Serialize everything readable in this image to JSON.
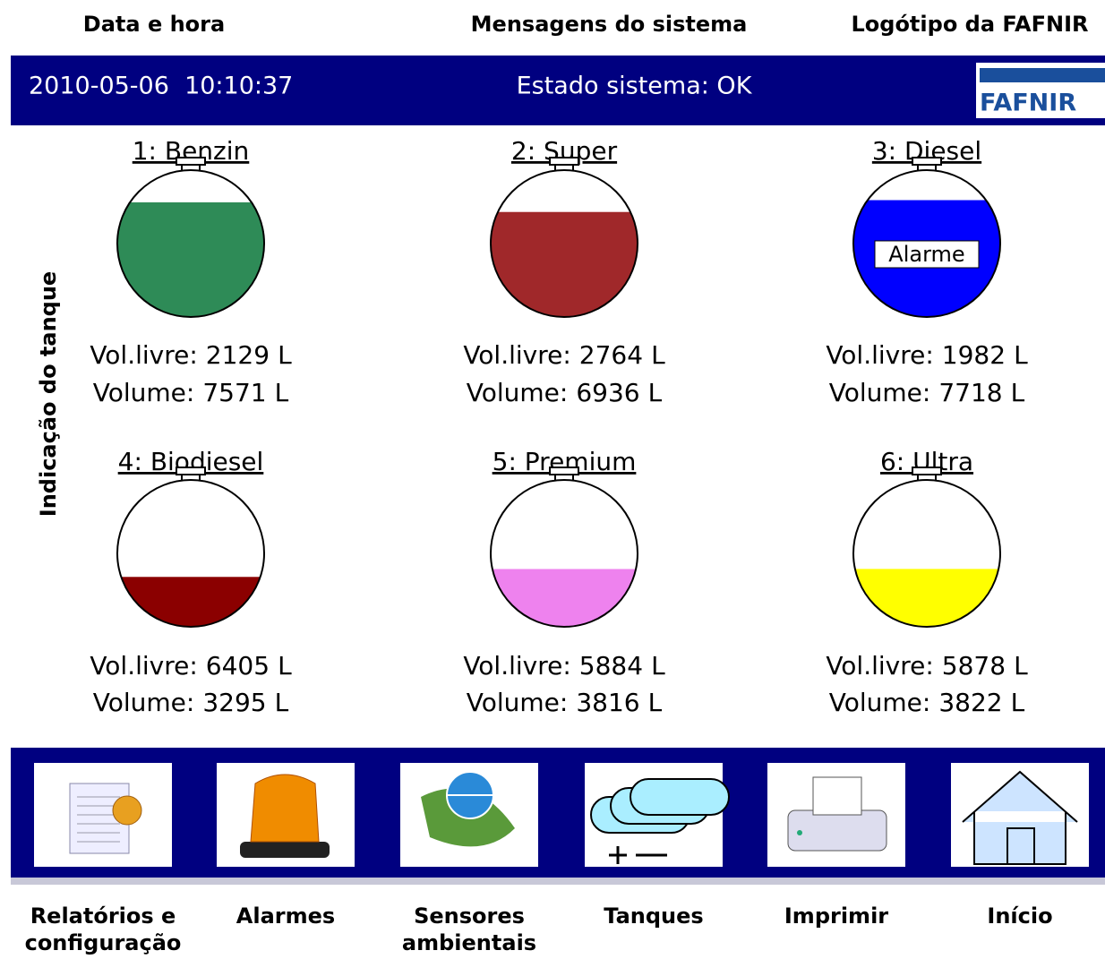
{
  "annotations": {
    "date_time": "Data e hora",
    "system_messages": "Mensagens do sistema",
    "logo": "Logótipo da FAFNIR",
    "tank_display": "Indicação do tanque"
  },
  "header": {
    "datetime": "2010-05-06  10:10:37",
    "status": "Estado sistema: OK",
    "logo": "FAFNIR"
  },
  "labels": {
    "free_volume": "Vol.livre:",
    "volume": "Volume:",
    "unit": "L"
  },
  "tanks": [
    {
      "name": "1: Benzin",
      "color": "#2e8b57",
      "free_volume": 2129,
      "volume": 7571
    },
    {
      "name": "2: Super",
      "color": "#a0282a",
      "free_volume": 2764,
      "volume": 6936
    },
    {
      "name": "3: Diesel",
      "color": "#0000ff",
      "free_volume": 1982,
      "volume": 7718,
      "alarm": "Alarme"
    },
    {
      "name": "4: Biodiesel",
      "color": "#8b0000",
      "free_volume": 6405,
      "volume": 3295
    },
    {
      "name": "5: Premium",
      "color": "#ee82ee",
      "free_volume": 5884,
      "volume": 3816
    },
    {
      "name": "6: Ultra",
      "color": "#ffff00",
      "free_volume": 5878,
      "volume": 3822
    }
  ],
  "toolbar": [
    "Relatórios e configuração",
    "Alarmes",
    "Sensores ambientais",
    "Tanques",
    "Imprimir",
    "Início"
  ]
}
